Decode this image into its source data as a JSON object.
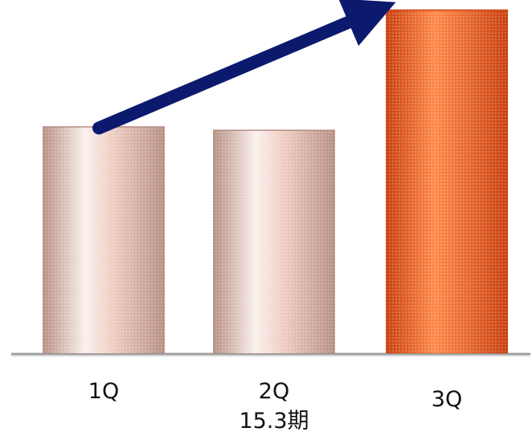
{
  "chart_data": {
    "type": "bar",
    "style": "3d-cylinder",
    "categories": [
      "1Q",
      "2Q",
      "3Q"
    ],
    "group_label": "15.3期",
    "values": [
      66,
      65,
      100
    ],
    "highlight_index": 2,
    "colors": {
      "normal_light": "#fbf0ec",
      "normal_mid": "#ecc9bd",
      "normal_dark": "#b78f84",
      "highlight_light": "#ff8a4a",
      "highlight_mid": "#f06a2a",
      "highlight_dark": "#c9400f",
      "arrow": "#0c1a6e",
      "baseline": "#9c9c9c"
    },
    "trend_arrow": {
      "from_index": 0,
      "to_index": 2
    },
    "axis": {
      "visible": false,
      "grid": false,
      "ylim": [
        0,
        100
      ]
    },
    "title": "",
    "xlabel": "",
    "ylabel": ""
  }
}
